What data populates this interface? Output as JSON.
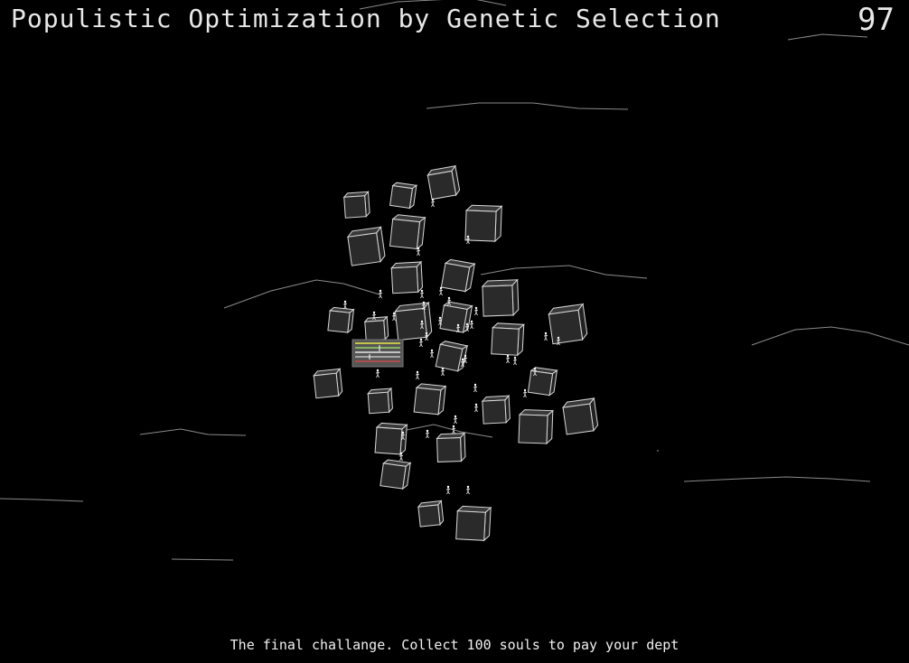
{
  "game": {
    "title": "Populistic Optimization by Genetic Selection",
    "soul_count": "97",
    "caption": "The final challange. Collect 100 souls to pay your dept"
  },
  "colors": {
    "background": "#000000",
    "text": "#e8e8e8",
    "box_face": "#2a2a2a",
    "box_edge": "#d8d8d8",
    "terrain_line": "#8a8a8a",
    "soul": "#ffffff",
    "player_panel": "#555555"
  },
  "icons": {
    "box": "crate-icon",
    "soul": "stick-figure-icon",
    "player": "player-panel-icon"
  }
}
